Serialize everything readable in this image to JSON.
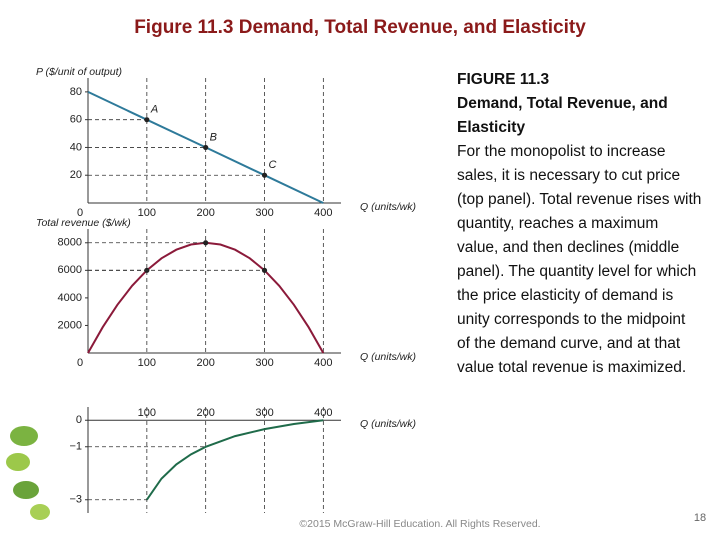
{
  "title": "Figure 11.3 Demand, Total Revenue, and Elasticity",
  "caption": {
    "label": "FIGURE 11.3",
    "heading": "Demand, Total Revenue, and Elasticity",
    "body": "For the monopolist to increase sales, it is necessary to cut price (top panel). Total revenue rises with quantity, reaches a maximum value, and then declines (middle panel). The quantity level for which the price elasticity of demand is unity corresponds to the midpoint of the demand curve, and at that value total revenue is maximized."
  },
  "footer": "©2015 McGraw-Hill Education. All Rights Reserved.",
  "page_number": "18",
  "chart_data": [
    {
      "type": "line",
      "y_label": "P ($/unit of output)",
      "x_label": "Q (units/wk)",
      "color": "#2e7a9a",
      "x": [
        0,
        100,
        200,
        300,
        400
      ],
      "values": [
        80,
        60,
        40,
        20,
        0
      ],
      "points": {
        "x": [
          100,
          200,
          300
        ],
        "values": [
          60,
          40,
          20
        ],
        "labels": [
          "A",
          "B",
          "C"
        ]
      },
      "markers": true,
      "xlim": [
        0,
        430
      ],
      "xticks": [
        0,
        100,
        200,
        300,
        400
      ],
      "ylim": [
        0,
        90
      ],
      "yticks": [
        20,
        40,
        60,
        80
      ]
    },
    {
      "type": "line",
      "y_label": "Total revenue ($/wk)",
      "x_label": "Q (units/wk)",
      "color": "#8b1a3a",
      "x": [
        0,
        25,
        50,
        75,
        100,
        125,
        150,
        175,
        200,
        225,
        250,
        275,
        300,
        325,
        350,
        375,
        400
      ],
      "values": [
        0,
        1875,
        3500,
        4875,
        6000,
        6875,
        7500,
        7875,
        8000,
        7875,
        7500,
        6875,
        6000,
        4875,
        3500,
        1875,
        0
      ],
      "points": {
        "x": [
          100,
          200,
          300
        ],
        "values": [
          6000,
          8000,
          6000
        ]
      },
      "markers": true,
      "xlim": [
        0,
        430
      ],
      "xticks": [
        0,
        100,
        200,
        300,
        400
      ],
      "ylim": [
        0,
        9000
      ],
      "yticks": [
        2000,
        4000,
        6000,
        8000
      ]
    },
    {
      "type": "line",
      "x_label": "Q (units/wk)",
      "color": "#1f6b4a",
      "x": [
        100,
        125,
        150,
        175,
        200,
        250,
        300,
        350,
        400
      ],
      "values": [
        -3,
        -2.2,
        -1.667,
        -1.286,
        -1,
        -0.6,
        -0.333,
        -0.143,
        0
      ],
      "points": {
        "x": [
          100,
          200
        ],
        "values": [
          -3,
          -1
        ]
      },
      "markers": false,
      "xlim": [
        0,
        430
      ],
      "xticks": [
        100,
        200,
        300,
        400
      ],
      "ylim": [
        -3.5,
        0.5
      ],
      "yticks": [
        0,
        {
          "value": -1,
          "label": "−1"
        },
        {
          "value": -3,
          "label": "−3"
        }
      ]
    }
  ]
}
